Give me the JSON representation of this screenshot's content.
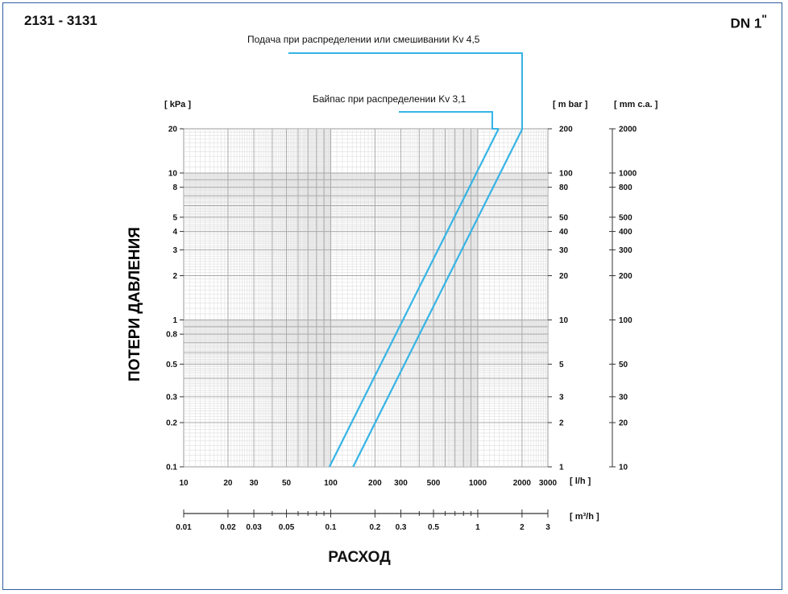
{
  "header": {
    "model": "2131 - 3131",
    "dn_label": "DN 1",
    "dn_mark": "\""
  },
  "chart_data": {
    "type": "line",
    "xscale": "log",
    "yscale": "log",
    "xlim": [
      10,
      3000
    ],
    "ylim": [
      0.1,
      20
    ],
    "grid": true,
    "x_unit_label": "[ l/h ]",
    "x2_unit_label": "[ m³/h ]",
    "y_left_unit": "[ kPa ]",
    "y_right_unit_1": "[ m bar ]",
    "y_right_unit_2": "[ mm c.a. ]",
    "xlabel": "РАСХОД",
    "ylabel": "ПОТЕРИ ДАВЛЕНИЯ",
    "x_ticks": [
      "10",
      "20",
      "30",
      "50",
      "100",
      "200",
      "300",
      "500",
      "1000",
      "2000",
      "3000"
    ],
    "x2_ticks": [
      "0.01",
      "0.02",
      "0.03",
      "0.05",
      "0.1",
      "0.2",
      "0.3",
      "0.5",
      "1",
      "2",
      "3"
    ],
    "y_left_ticks": [
      "20",
      "10",
      "8",
      "5",
      "4",
      "3",
      "2",
      "1",
      "0.8",
      "0.5",
      "0.3",
      "0.2",
      "0.1"
    ],
    "y_mbar_ticks": [
      "200",
      "100",
      "80",
      "50",
      "40",
      "30",
      "20",
      "10",
      "5",
      "3",
      "2",
      "1"
    ],
    "y_mmca_ticks": [
      "2000",
      "1000",
      "800",
      "500",
      "400",
      "300",
      "200",
      "100",
      "50",
      "30",
      "20",
      "10"
    ],
    "series": [
      {
        "name": "Байпас при распределении Kv 3,1",
        "color": "#35b4e6",
        "kv": 3.1,
        "x": [
          98,
          1386
        ],
        "y": [
          0.1,
          20
        ]
      },
      {
        "name": "Подача при распределении или смешивании Kv 4,5",
        "color": "#35b4e6",
        "kv": 4.5,
        "x": [
          142,
          2012
        ],
        "y": [
          0.1,
          20
        ]
      }
    ]
  }
}
